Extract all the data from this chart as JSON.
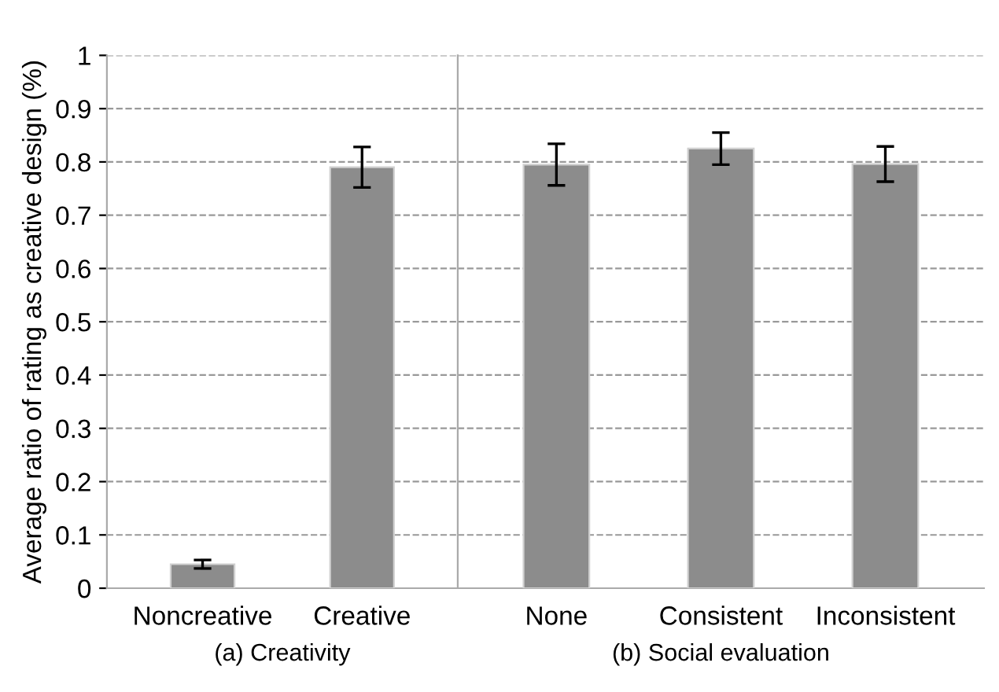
{
  "chart_data": [
    {
      "type": "bar",
      "xlabel": "(a) Creativity",
      "ylabel": "Average ratio of rating as creative design (%)",
      "categories": [
        "Noncreative",
        "Creative"
      ],
      "series": [
        {
          "color": "#8c8c8c",
          "values": [
            0.045,
            0.79
          ],
          "errors": [
            0.008,
            0.038
          ]
        }
      ],
      "ylim": [
        0,
        1
      ],
      "yticks": [
        0,
        0.1,
        0.2,
        0.3,
        0.4,
        0.5,
        0.6,
        0.7,
        0.8,
        0.9,
        1
      ],
      "grid": "y"
    },
    {
      "type": "bar",
      "xlabel": "(b) Social evaluation",
      "categories": [
        "None",
        "Consistent",
        "Inconsistent"
      ],
      "series": [
        {
          "color": "#8c8c8c",
          "values": [
            0.795,
            0.825,
            0.796
          ],
          "errors": [
            0.039,
            0.03,
            0.033
          ]
        }
      ],
      "ylim": [
        0,
        1
      ],
      "yticks": [
        0,
        0.1,
        0.2,
        0.3,
        0.4,
        0.5,
        0.6,
        0.7,
        0.8,
        0.9,
        1
      ],
      "grid": "y",
      "tick_labels": "x"
    }
  ]
}
